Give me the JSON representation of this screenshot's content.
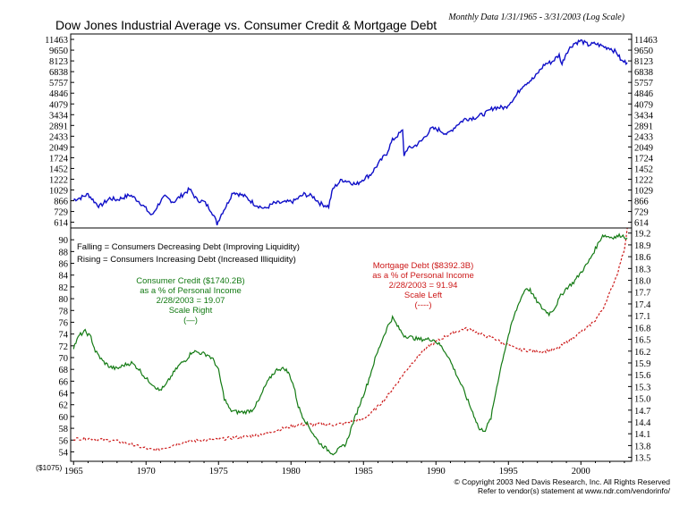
{
  "chart_data": [
    {
      "panel": "top",
      "type": "line",
      "title": "Dow Jones Industrial Average vs. Consumer Credit & Mortgage Debt",
      "subtitle": "Monthly Data 1/31/1965 - 3/31/2003 (Log Scale)",
      "y_scale": "log",
      "y_ticks": [
        614,
        729,
        866,
        1029,
        1222,
        1452,
        1724,
        2049,
        2433,
        2891,
        3434,
        4079,
        4846,
        5757,
        6838,
        8123,
        9650,
        11463
      ],
      "y_tick_labels": [
        "614",
        "729",
        "866",
        "1029",
        "1222",
        "1452",
        "1724",
        "2049",
        "2433",
        "2891",
        "3434",
        "4079",
        "4846",
        "5757",
        "6838",
        "8123",
        "9650",
        "11463"
      ],
      "ylim": [
        560,
        12500
      ],
      "xlim": [
        1964.8,
        2003.5
      ],
      "color": "#1010c8",
      "series": [
        {
          "x": [
            1965.0,
            1965.5,
            1966.0,
            1966.5,
            1966.8,
            1967.5,
            1968.0,
            1968.9,
            1969.5,
            1970.4,
            1971.0,
            1971.3,
            1971.9,
            1972.5,
            1973.0,
            1973.5,
            1974.0,
            1974.5,
            1974.9,
            1975.2,
            1975.6,
            1976.0,
            1976.8,
            1977.5,
            1978.2,
            1978.8,
            1979.5,
            1980.2,
            1980.9,
            1981.5,
            1982.0,
            1982.6,
            1982.9,
            1983.5,
            1984.0,
            1984.5,
            1985.0,
            1985.5,
            1986.0,
            1986.6,
            1987.0,
            1987.7,
            1987.8,
            1988.0,
            1988.5,
            1989.0,
            1989.7,
            1990.2,
            1990.8,
            1991.5,
            1992.0,
            1992.8,
            1993.5,
            1994.0,
            1994.8,
            1995.5,
            1996.0,
            1996.8,
            1997.5,
            1998.0,
            1998.5,
            1998.7,
            1999.0,
            1999.5,
            2000.0,
            2000.5,
            2001.0,
            2001.7,
            2002.0,
            2002.5,
            2002.8,
            2003.2
          ],
          "values": [
            880,
            910,
            960,
            840,
            790,
            900,
            880,
            950,
            860,
            680,
            860,
            920,
            850,
            950,
            1040,
            880,
            850,
            740,
            600,
            700,
            820,
            1000,
            930,
            820,
            760,
            830,
            840,
            860,
            960,
            930,
            830,
            790,
            1050,
            1210,
            1180,
            1120,
            1230,
            1320,
            1550,
            1850,
            2280,
            2650,
            1800,
            1980,
            2070,
            2250,
            2750,
            2700,
            2500,
            2950,
            3200,
            3300,
            3550,
            3850,
            3850,
            4600,
            5500,
            6200,
            7700,
            8000,
            8900,
            7700,
            9300,
            10700,
            11200,
            10500,
            10700,
            10100,
            10000,
            9200,
            8100,
            7900
          ]
        }
      ]
    },
    {
      "panel": "bottom",
      "type": "line",
      "left_axis": {
        "ticks": [
          54,
          56,
          58,
          60,
          62,
          64,
          66,
          68,
          70,
          72,
          74,
          76,
          78,
          80,
          82,
          84,
          86,
          88,
          90
        ],
        "tick_labels": [
          "54",
          "56",
          "58",
          "60",
          "62",
          "64",
          "66",
          "68",
          "70",
          "72",
          "74",
          "76",
          "78",
          "80",
          "82",
          "84",
          "86",
          "88",
          "90"
        ],
        "ylim": [
          52.4,
          92.0
        ]
      },
      "right_axis": {
        "ticks": [
          13.5,
          13.8,
          14.1,
          14.4,
          14.7,
          15.0,
          15.3,
          15.6,
          15.9,
          16.2,
          16.5,
          16.8,
          17.1,
          17.4,
          17.7,
          18.0,
          18.3,
          18.6,
          18.9,
          19.2
        ],
        "tick_labels": [
          "13.5",
          "13.8",
          "14.1",
          "14.4",
          "14.7",
          "15.0",
          "15.3",
          "15.6",
          "15.9",
          "16.2",
          "16.5",
          "16.8",
          "17.1",
          "17.4",
          "17.7",
          "18.0",
          "18.3",
          "18.6",
          "18.9",
          "19.2"
        ],
        "ylim": [
          13.4,
          19.33
        ]
      },
      "x_ticks": [
        1965,
        1970,
        1975,
        1980,
        1985,
        1990,
        1995,
        2000
      ],
      "x_tick_labels": [
        "1965",
        "1970",
        "1975",
        "1980",
        "1985",
        "1990",
        "1995",
        "2000"
      ],
      "xlim": [
        1964.8,
        2003.5
      ],
      "series": [
        {
          "axis": "right",
          "color": "#137a13",
          "x": [
            1965.0,
            1965.4,
            1965.8,
            1966.2,
            1966.5,
            1967.0,
            1967.5,
            1968.0,
            1968.5,
            1969.0,
            1969.5,
            1970.0,
            1970.5,
            1970.9,
            1971.3,
            1971.8,
            1972.3,
            1972.8,
            1973.2,
            1973.8,
            1974.3,
            1974.7,
            1975.0,
            1975.4,
            1975.8,
            1976.3,
            1976.8,
            1977.3,
            1977.8,
            1978.2,
            1978.7,
            1979.1,
            1979.6,
            1979.9,
            1980.2,
            1980.5,
            1980.8,
            1981.2,
            1981.7,
            1982.0,
            1982.5,
            1982.9,
            1983.3,
            1983.8,
            1984.3,
            1984.8,
            1985.3,
            1985.8,
            1986.3,
            1986.7,
            1987.0,
            1987.4,
            1987.8,
            1988.3,
            1988.8,
            1989.3,
            1989.8,
            1990.3,
            1990.8,
            1991.3,
            1991.8,
            1992.3,
            1992.7,
            1993.0,
            1993.4,
            1993.8,
            1994.2,
            1994.6,
            1995.0,
            1995.4,
            1995.8,
            1996.2,
            1996.5,
            1996.8,
            1997.3,
            1997.8,
            1998.2,
            1998.6,
            1999.0,
            1999.5,
            2000.0,
            2000.5,
            2001.0,
            2001.5,
            2002.0,
            2002.4,
            2002.8,
            2003.0,
            2003.2
          ],
          "values": [
            16.3,
            16.6,
            16.7,
            16.55,
            16.2,
            15.95,
            15.8,
            15.75,
            15.85,
            15.9,
            15.75,
            15.5,
            15.35,
            15.2,
            15.3,
            15.6,
            15.85,
            16.0,
            16.2,
            16.15,
            16.1,
            15.95,
            15.7,
            15.0,
            14.7,
            14.65,
            14.65,
            14.7,
            14.95,
            15.3,
            15.6,
            15.75,
            15.75,
            15.6,
            15.3,
            14.8,
            14.55,
            14.3,
            14.0,
            13.85,
            13.7,
            13.6,
            13.7,
            13.85,
            14.4,
            14.9,
            15.4,
            16.0,
            16.5,
            16.85,
            17.05,
            16.8,
            16.6,
            16.55,
            16.5,
            16.5,
            16.5,
            16.35,
            16.1,
            15.7,
            15.3,
            14.85,
            14.5,
            14.2,
            14.2,
            14.5,
            15.3,
            16.0,
            16.6,
            17.1,
            17.5,
            17.8,
            17.75,
            17.55,
            17.3,
            17.15,
            17.3,
            17.6,
            17.8,
            17.95,
            18.2,
            18.45,
            18.8,
            19.15,
            19.1,
            19.1,
            19.15,
            19.1,
            19.07
          ]
        },
        {
          "axis": "left",
          "color": "#cc1818",
          "x": [
            1965.0,
            1966.0,
            1967.0,
            1968.0,
            1968.7,
            1969.5,
            1970.0,
            1970.5,
            1971.0,
            1971.5,
            1972.0,
            1972.5,
            1973.0,
            1974.0,
            1975.0,
            1976.0,
            1977.0,
            1978.0,
            1978.5,
            1979.0,
            1980.0,
            1980.5,
            1981.0,
            1981.5,
            1982.0,
            1982.5,
            1983.0,
            1983.5,
            1984.0,
            1985.0,
            1985.5,
            1986.0,
            1986.5,
            1987.0,
            1987.5,
            1988.0,
            1988.5,
            1989.0,
            1989.5,
            1990.0,
            1990.5,
            1991.0,
            1991.5,
            1992.0,
            1992.5,
            1993.0,
            1993.5,
            1994.0,
            1994.5,
            1995.0,
            1995.5,
            1996.0,
            1996.5,
            1997.0,
            1997.5,
            1998.0,
            1998.5,
            1999.0,
            1999.5,
            2000.0,
            2000.5,
            2001.0,
            2001.5,
            2002.0,
            2002.5,
            2003.0,
            2003.2
          ],
          "values": [
            56.2,
            56.3,
            56.1,
            55.8,
            55.5,
            54.9,
            54.6,
            54.3,
            54.5,
            54.8,
            55.3,
            55.6,
            55.8,
            56.0,
            56.1,
            56.4,
            56.6,
            57.0,
            57.3,
            57.7,
            58.3,
            58.6,
            58.7,
            58.6,
            58.7,
            58.6,
            58.6,
            58.8,
            59.0,
            59.6,
            60.5,
            61.7,
            63.0,
            64.6,
            66.3,
            68.0,
            69.5,
            70.9,
            71.9,
            72.7,
            73.4,
            74.0,
            74.5,
            74.9,
            74.7,
            74.1,
            73.6,
            73.3,
            72.6,
            72.1,
            71.5,
            71.3,
            71.2,
            71.1,
            71.1,
            71.2,
            71.7,
            72.6,
            73.5,
            74.3,
            75.2,
            76.4,
            78.2,
            81.0,
            84.2,
            88.4,
            91.94
          ]
        }
      ],
      "annotations": [
        {
          "lines": [
            "Falling = Consumers Decreasing Debt (Improving Liquidity)",
            "Rising = Consumers Increasing Debt (Increased Illiquidity)"
          ],
          "color": "#000000"
        },
        {
          "lines": [
            "Consumer Credit ($1740.2B)",
            "as a % of Personal Income",
            "2/28/2003 = 19.07",
            "Scale Right",
            "(—)"
          ],
          "color": "#137a13"
        },
        {
          "lines": [
            "Mortgage Debt ($8392.3B)",
            "as a % of Personal Income",
            "2/28/2003 = 91.94",
            "Scale Left",
            "(----)"
          ],
          "color": "#cc1818"
        }
      ]
    }
  ],
  "footer": {
    "left_label": "($1075)",
    "copyright": "© Copyright 2003 Ned Davis Research, Inc. All Rights Reserved",
    "vendor_note": "Refer to vendor(s) statement at www.ndr.com/vendorinfo/"
  }
}
